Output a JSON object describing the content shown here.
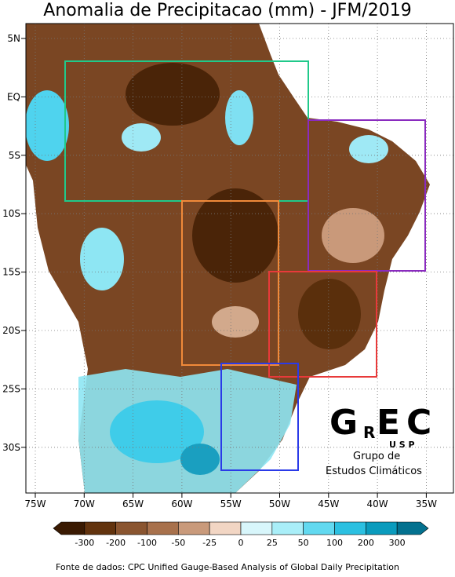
{
  "title": "Anomalia de Precipitacao (mm) - JFM/2019",
  "map": {
    "lon_labels": [
      "75W",
      "70W",
      "65W",
      "60W",
      "55W",
      "50W",
      "45W",
      "40W",
      "35W"
    ],
    "lat_labels": [
      "5N",
      "EQ",
      "5S",
      "10S",
      "15S",
      "20S",
      "25S",
      "30S"
    ]
  },
  "colorbar": {
    "labels": [
      "-300",
      "-200",
      "-100",
      "-50",
      "-25",
      "0",
      "25",
      "50",
      "100",
      "200",
      "300"
    ],
    "colors": [
      "#3a1a02",
      "#62330e",
      "#8a5530",
      "#a8714c",
      "#c99a7b",
      "#f2d6c4",
      "#d8f6fb",
      "#a9eef8",
      "#62d9f0",
      "#2bc0e1",
      "#0a9bbd",
      "#03718f"
    ]
  },
  "logo": {
    "letters": [
      "G",
      "R",
      "E",
      "C"
    ],
    "usp": "U S P",
    "line1": "Grupo de",
    "line2": "Estudos Climáticos"
  },
  "source": "Fonte de dados: CPC Unified Gauge-Based Analysis of Global Daily Precipitation"
}
